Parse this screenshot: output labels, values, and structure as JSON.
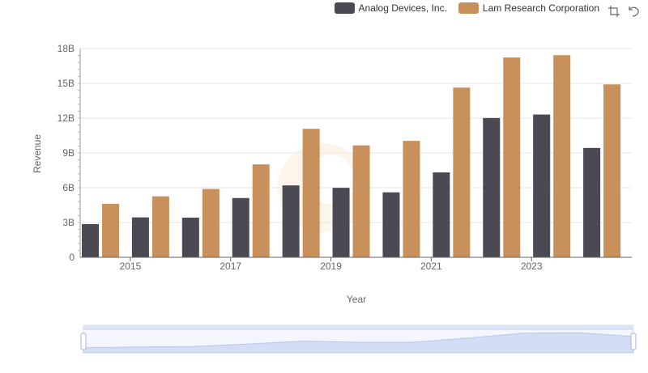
{
  "legend": [
    {
      "name": "Analog Devices, Inc.",
      "color": "#4a4954"
    },
    {
      "name": "Lam Research Corporation",
      "color": "#c8915c"
    }
  ],
  "toolbox": {
    "icons": [
      "zoom-icon",
      "restore-icon"
    ]
  },
  "chart_data": {
    "type": "bar",
    "title": "",
    "xlabel": "Year",
    "ylabel": "Revenue",
    "ylim": [
      0,
      18000000000
    ],
    "yticks": [
      "0",
      "3B",
      "6B",
      "9B",
      "12B",
      "15B",
      "18B"
    ],
    "x": [
      2014,
      2015,
      2016,
      2017,
      2018,
      2019,
      2020,
      2021,
      2022,
      2023,
      2024
    ],
    "xtick_labels": [
      "2015",
      "2017",
      "2019",
      "2021",
      "2023"
    ],
    "grid": true,
    "legend_position": "top-right",
    "series": [
      {
        "name": "Analog Devices, Inc.",
        "color": "#4a4954",
        "values": [
          2860000000,
          3440000000,
          3420000000,
          5110000000,
          6200000000,
          5990000000,
          5600000000,
          7320000000,
          12010000000,
          12310000000,
          9430000000
        ]
      },
      {
        "name": "Lam Research Corporation",
        "color": "#c8915c",
        "values": [
          4610000000,
          5260000000,
          5890000000,
          8010000000,
          11080000000,
          9650000000,
          10040000000,
          14630000000,
          17230000000,
          17430000000,
          14910000000
        ]
      }
    ]
  }
}
